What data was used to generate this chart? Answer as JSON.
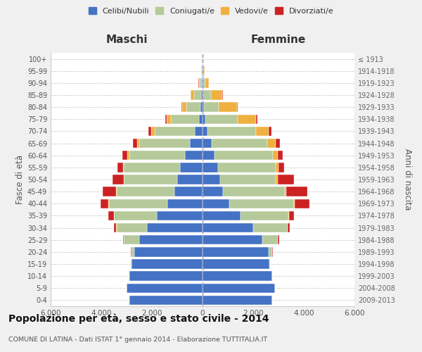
{
  "age_groups": [
    "0-4",
    "5-9",
    "10-14",
    "15-19",
    "20-24",
    "25-29",
    "30-34",
    "35-39",
    "40-44",
    "45-49",
    "50-54",
    "55-59",
    "60-64",
    "65-69",
    "70-74",
    "75-79",
    "80-84",
    "85-89",
    "90-94",
    "95-99",
    "100+"
  ],
  "birth_years": [
    "2009-2013",
    "2004-2008",
    "1999-2003",
    "1994-1998",
    "1989-1993",
    "1984-1988",
    "1979-1983",
    "1974-1978",
    "1969-1973",
    "1964-1968",
    "1959-1963",
    "1954-1958",
    "1949-1953",
    "1944-1948",
    "1939-1943",
    "1934-1938",
    "1929-1933",
    "1924-1928",
    "1919-1923",
    "1914-1918",
    "≤ 1913"
  ],
  "maschi": {
    "celibe": [
      2900,
      3000,
      2900,
      2800,
      2700,
      2500,
      2200,
      1800,
      1400,
      1100,
      1000,
      900,
      700,
      500,
      300,
      150,
      80,
      60,
      30,
      20,
      10
    ],
    "coniugato": [
      5,
      5,
      5,
      20,
      100,
      600,
      1200,
      1700,
      2300,
      2300,
      2100,
      2200,
      2200,
      2000,
      1600,
      1100,
      550,
      280,
      80,
      20,
      10
    ],
    "vedovo": [
      0,
      0,
      0,
      0,
      5,
      5,
      10,
      10,
      10,
      15,
      25,
      45,
      65,
      90,
      130,
      160,
      180,
      120,
      40,
      15,
      5
    ],
    "divorziato": [
      0,
      0,
      0,
      0,
      15,
      45,
      100,
      200,
      320,
      530,
      420,
      220,
      210,
      160,
      110,
      55,
      30,
      20,
      10,
      5,
      2
    ]
  },
  "femmine": {
    "celibe": [
      2750,
      2850,
      2750,
      2650,
      2600,
      2350,
      2000,
      1500,
      1050,
      800,
      700,
      600,
      480,
      350,
      200,
      100,
      50,
      30,
      20,
      10,
      5
    ],
    "coniugata": [
      5,
      5,
      5,
      20,
      150,
      620,
      1350,
      1900,
      2550,
      2450,
      2200,
      2300,
      2300,
      2200,
      1900,
      1300,
      600,
      300,
      80,
      25,
      10
    ],
    "vedova": [
      0,
      0,
      0,
      0,
      5,
      5,
      10,
      20,
      30,
      50,
      80,
      110,
      200,
      350,
      520,
      700,
      700,
      450,
      150,
      40,
      5
    ],
    "divorziata": [
      0,
      0,
      0,
      0,
      15,
      50,
      90,
      200,
      600,
      830,
      620,
      220,
      200,
      160,
      100,
      80,
      30,
      20,
      10,
      5,
      2
    ]
  },
  "colors": {
    "celibe": "#4472c4",
    "coniugato": "#b5c99a",
    "vedovo": "#f0b040",
    "divorziato": "#cc2222"
  },
  "xlim": 6000,
  "title": "Popolazione per età, sesso e stato civile - 2014",
  "subtitle": "COMUNE DI LATINA - Dati ISTAT 1° gennaio 2014 - Elaborazione TUTTITALIA.IT",
  "ylabel": "Fasce di età",
  "ylabel_right": "Anni di nascita",
  "xlabel_left": "Maschi",
  "xlabel_right": "Femmine",
  "bg_color": "#f0f0f0",
  "plot_bg_color": "#ffffff"
}
